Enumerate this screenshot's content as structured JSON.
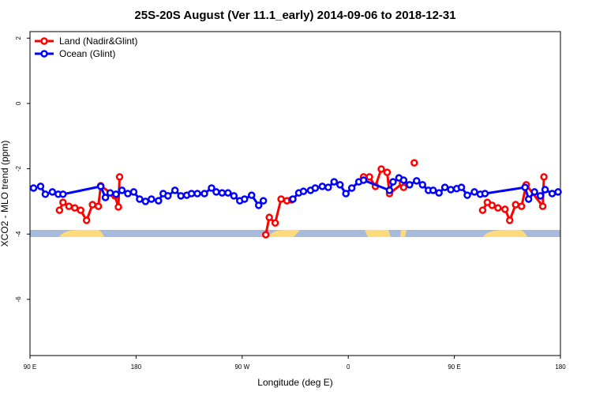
{
  "chart_data": {
    "type": "line",
    "title": "25S-20S August (Ver 11.1_early)   2014-09-06 to 2018-12-31",
    "x_label": "Longitude (deg E)",
    "y_label": "XCO2 - MLO trend (ppm)",
    "xlim": [
      90,
      540
    ],
    "xticks": [
      {
        "value": 90,
        "label": "90 E"
      },
      {
        "value": 180,
        "label": "180"
      },
      {
        "value": 270,
        "label": "90 W"
      },
      {
        "value": 360,
        "label": "0"
      },
      {
        "value": 450,
        "label": "90 E"
      },
      {
        "value": 540,
        "label": "180"
      }
    ],
    "ylim": [
      -7.72,
      2.2
    ],
    "yticks": [
      -6,
      -4,
      -2,
      0,
      2
    ],
    "legend": "top-left",
    "series": [
      {
        "name": "Land (Nadir&Glint)",
        "color": "#ff0000",
        "x": [
          115,
          118,
          123,
          128,
          133,
          138,
          143,
          148,
          150,
          162,
          165,
          166,
          null,
          290,
          293,
          298,
          303,
          308,
          312,
          null,
          373,
          378,
          383,
          388,
          393,
          395,
          406,
          407,
          null,
          416,
          null,
          474,
          478,
          482,
          487,
          493,
          497,
          502,
          507,
          511,
          525,
          526
        ],
        "values": [
          -3.27,
          -3.03,
          -3.15,
          -3.2,
          -3.27,
          -3.58,
          -3.1,
          -3.15,
          -2.52,
          -2.83,
          -3.17,
          -2.25,
          null,
          -4.02,
          -3.49,
          -3.66,
          -2.93,
          -2.98,
          -2.95,
          null,
          -2.25,
          -2.25,
          -2.54,
          -2.01,
          -2.11,
          -2.76,
          -2.45,
          -2.57,
          null,
          -1.82,
          null,
          -3.27,
          -3.03,
          -3.12,
          -3.2,
          -3.24,
          -3.58,
          -3.1,
          -3.15,
          -2.49,
          -3.15,
          -2.25
        ]
      },
      {
        "name": "Ocean (Glint)",
        "color": "#0000ff",
        "x": [
          93,
          99,
          103,
          109,
          114,
          118,
          150,
          154,
          158,
          163,
          168,
          173,
          178,
          183,
          188,
          193,
          199,
          203,
          207,
          213,
          218,
          223,
          227,
          232,
          238,
          244,
          248,
          253,
          258,
          263,
          268,
          272,
          278,
          284,
          288,
          null,
          313,
          318,
          322,
          328,
          332,
          338,
          343,
          348,
          353,
          358,
          363,
          369,
          373,
          395,
          398,
          403,
          407,
          412,
          418,
          423,
          428,
          432,
          437,
          442,
          447,
          452,
          456,
          461,
          467,
          472,
          476,
          510,
          513,
          518,
          523,
          527,
          533,
          538
        ],
        "values": [
          -2.59,
          -2.54,
          -2.78,
          -2.71,
          -2.78,
          -2.78,
          -2.54,
          -2.88,
          -2.74,
          -2.78,
          -2.66,
          -2.76,
          -2.71,
          -2.93,
          -3.0,
          -2.93,
          -2.98,
          -2.76,
          -2.83,
          -2.66,
          -2.83,
          -2.81,
          -2.76,
          -2.76,
          -2.76,
          -2.59,
          -2.71,
          -2.74,
          -2.74,
          -2.83,
          -2.98,
          -2.93,
          -2.81,
          -3.12,
          -2.98,
          null,
          -2.93,
          -2.74,
          -2.69,
          -2.66,
          -2.59,
          -2.54,
          -2.57,
          -2.4,
          -2.49,
          -2.76,
          -2.59,
          -2.4,
          -2.35,
          -2.66,
          -2.4,
          -2.28,
          -2.35,
          -2.49,
          -2.37,
          -2.49,
          -2.66,
          -2.66,
          -2.74,
          -2.57,
          -2.64,
          -2.61,
          -2.57,
          -2.81,
          -2.71,
          -2.78,
          -2.76,
          -2.57,
          -2.93,
          -2.71,
          -2.83,
          -2.64,
          -2.76,
          -2.71
        ]
      }
    ]
  }
}
